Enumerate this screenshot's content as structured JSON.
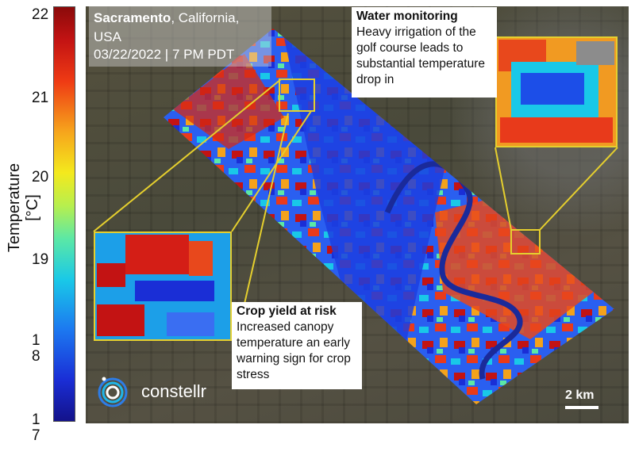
{
  "legend": {
    "label": "Temperature [°C]",
    "ticks": [
      "22",
      "21",
      "20",
      "19",
      "18",
      "17"
    ],
    "colors": [
      "#13128a",
      "#1a2ed6",
      "#1c78f0",
      "#19c8e8",
      "#5be8a6",
      "#b7ef4e",
      "#f4e91d",
      "#f6a41c",
      "#ef3b14",
      "#c31313",
      "#8b0a0a"
    ]
  },
  "location": {
    "city": "Sacramento",
    "state": ", California,",
    "country": "USA",
    "datetime": "03/22/2022 | 7 PM PDT"
  },
  "callouts": {
    "water": {
      "title": "Water monitoring",
      "body": "Heavy irrigation of the golf course leads to substantial temperature drop in"
    },
    "crop": {
      "title": "Crop yield at risk",
      "body": "Increased canopy temperature an early warning sign for crop stress"
    }
  },
  "brand": {
    "name": "constellr"
  },
  "scale": {
    "label": "2 km"
  }
}
